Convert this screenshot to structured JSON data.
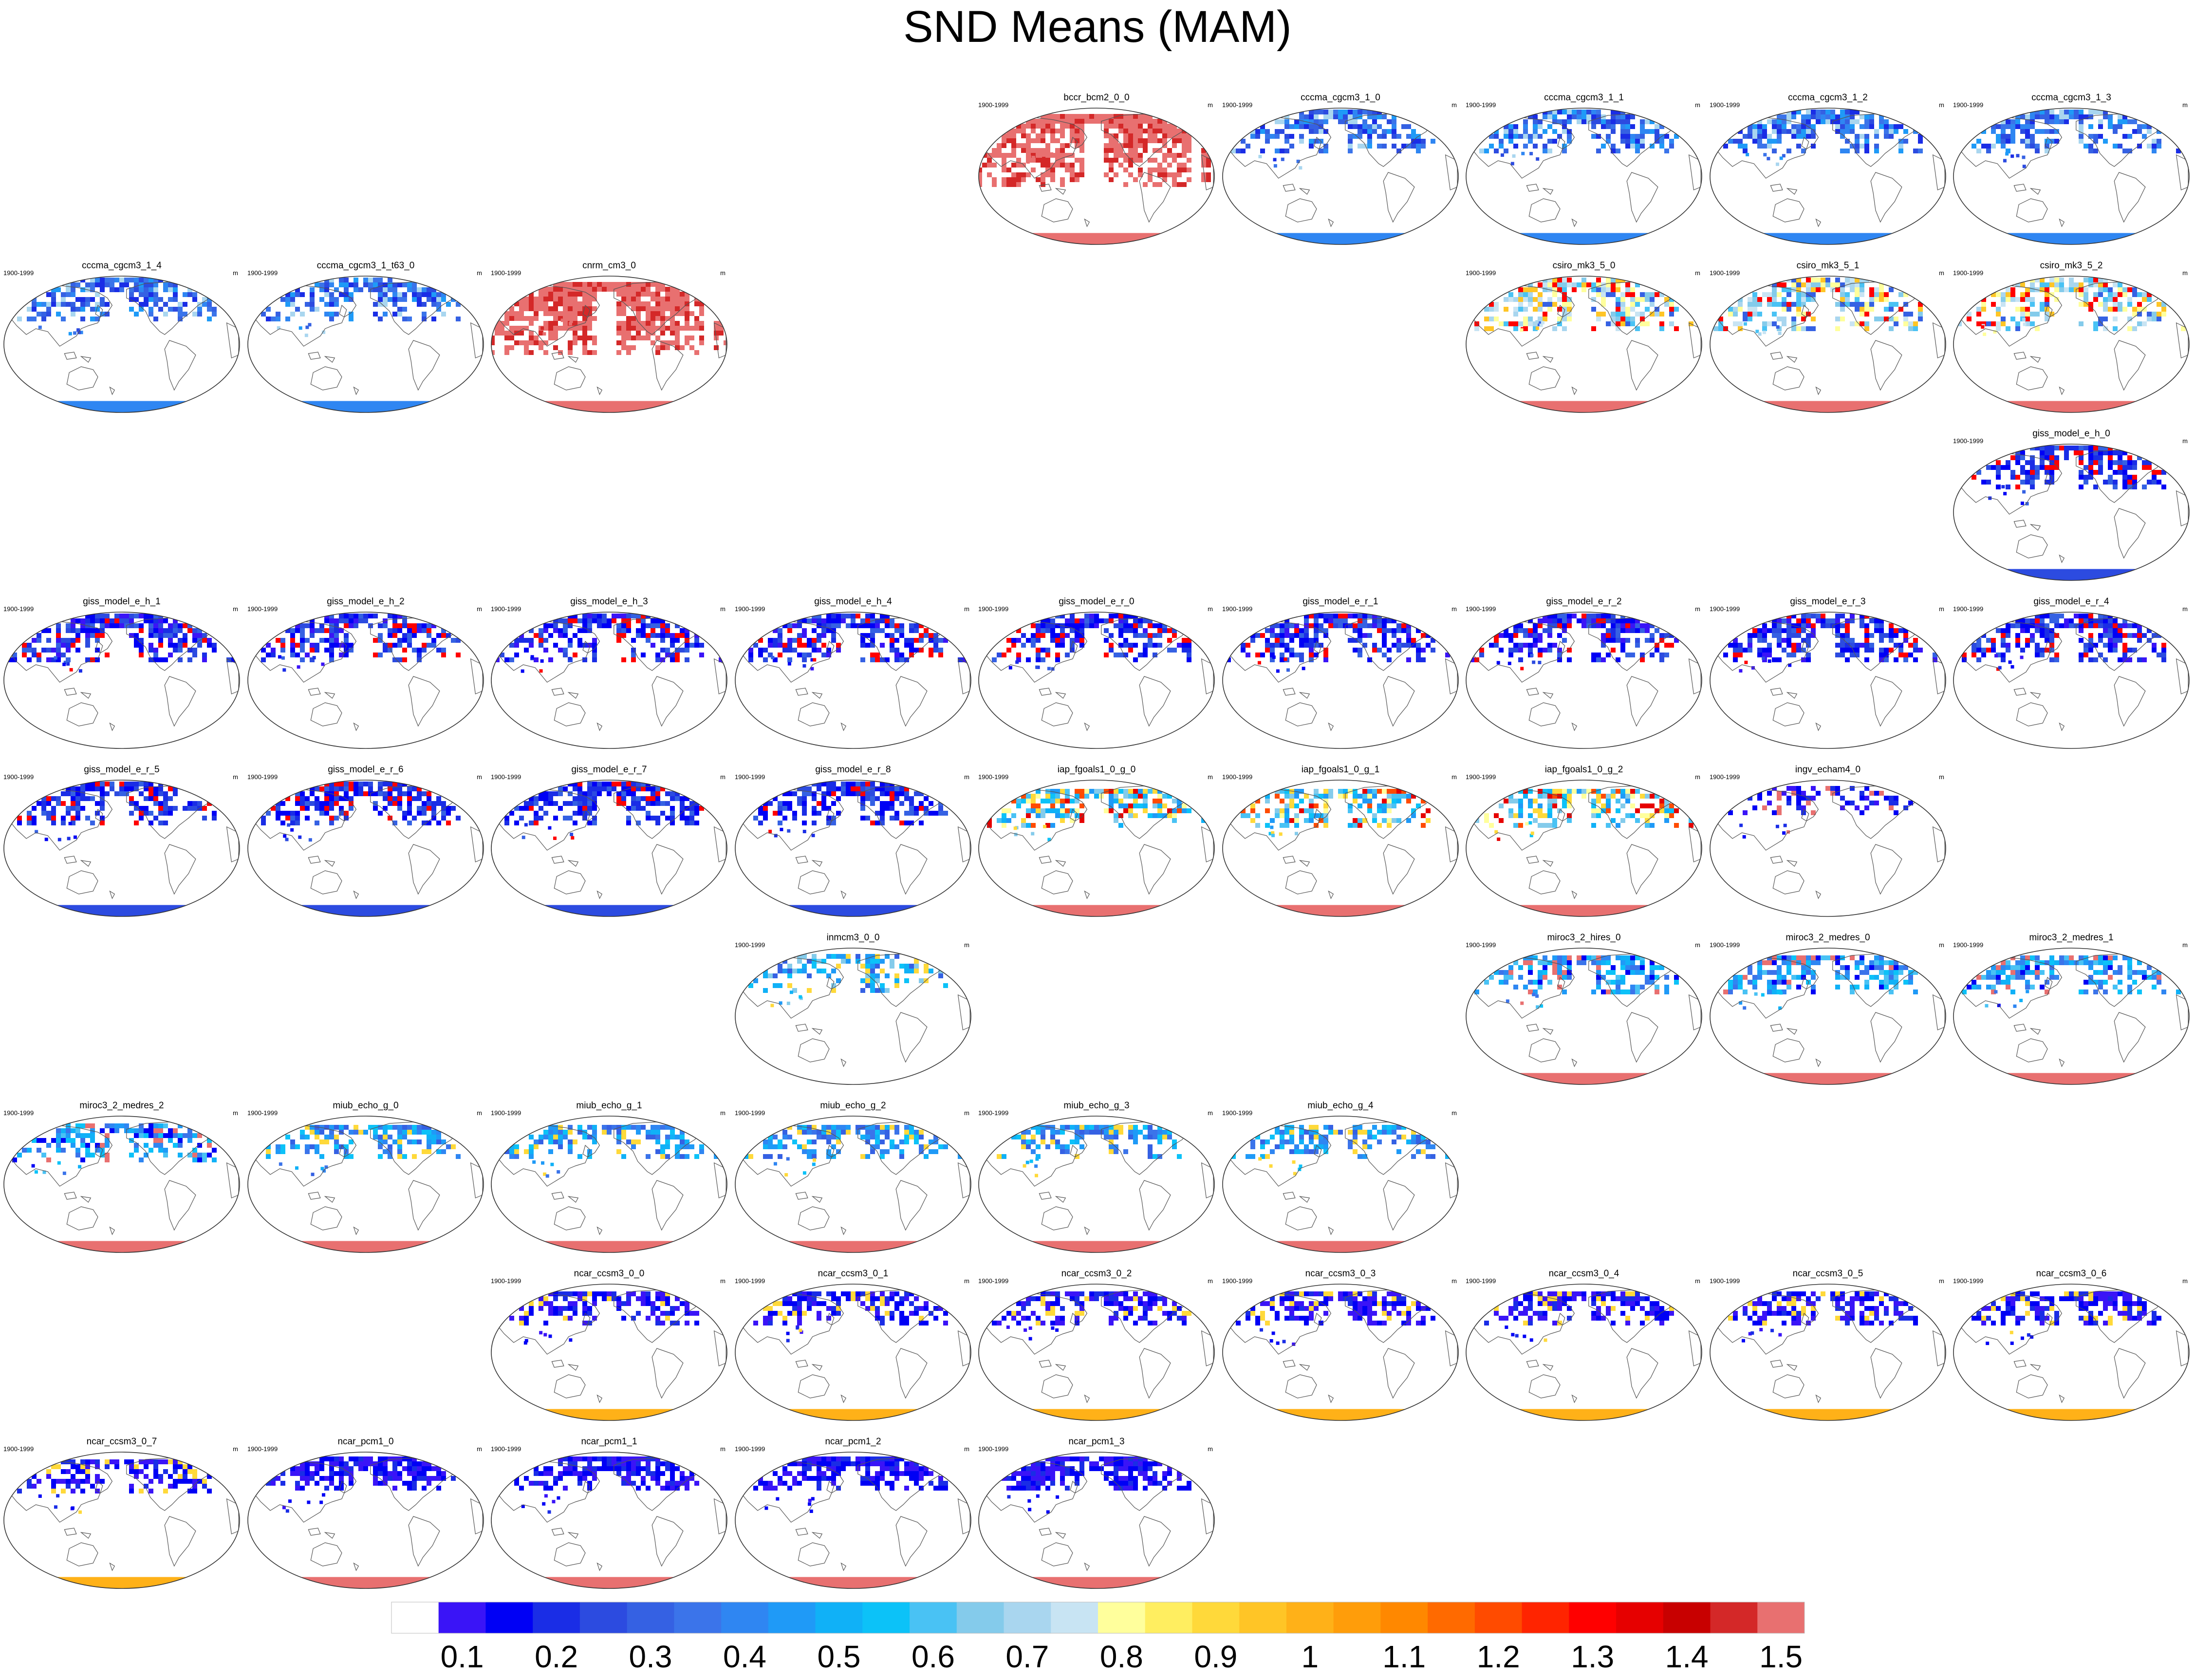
{
  "title": "SND Means (MAM)",
  "chart_data": {
    "type": "heatmap",
    "title": "SND Means (MAM)",
    "variable": "SND",
    "season": "MAM",
    "period": "1900-1999",
    "units": "m",
    "colorbar": {
      "tick_labels": [
        "0.1",
        "0.2",
        "0.3",
        "0.4",
        "0.5",
        "0.6",
        "0.7",
        "0.8",
        "0.9",
        "1",
        "1.1",
        "1.2",
        "1.3",
        "1.4",
        "1.5"
      ],
      "colors": [
        "#ffffff",
        "#3a14f7",
        "#0000f5",
        "#1a2de6",
        "#2c4be0",
        "#3561e3",
        "#3b74ea",
        "#2f86f2",
        "#1f9af7",
        "#10b1f7",
        "#0cc2f8",
        "#49c2f4",
        "#84cbeb",
        "#a9d6ef",
        "#c8e4f3",
        "#ffff9c",
        "#ffee60",
        "#ffd93a",
        "#ffc526",
        "#ffb118",
        "#ff9d0a",
        "#ff8800",
        "#ff6a00",
        "#ff4b00",
        "#ff2400",
        "#ff0000",
        "#e60000",
        "#c80000",
        "#d42828",
        "#e87070"
      ]
    },
    "panels": [
      {
        "name": "bccr_bcm2_0_0",
        "row": 0,
        "col": 4,
        "style": "red"
      },
      {
        "name": "cccma_cgcm3_1_0",
        "row": 0,
        "col": 5,
        "style": "cccma"
      },
      {
        "name": "cccma_cgcm3_1_1",
        "row": 0,
        "col": 6,
        "style": "cccma"
      },
      {
        "name": "cccma_cgcm3_1_2",
        "row": 0,
        "col": 7,
        "style": "cccma"
      },
      {
        "name": "cccma_cgcm3_1_3",
        "row": 0,
        "col": 8,
        "style": "cccma"
      },
      {
        "name": "cccma_cgcm3_1_4",
        "row": 1,
        "col": 0,
        "style": "cccma"
      },
      {
        "name": "cccma_cgcm3_1_t63_0",
        "row": 1,
        "col": 1,
        "style": "cccma"
      },
      {
        "name": "cnrm_cm3_0",
        "row": 1,
        "col": 2,
        "style": "red"
      },
      {
        "name": "csiro_mk3_5_0",
        "row": 1,
        "col": 6,
        "style": "csiro"
      },
      {
        "name": "csiro_mk3_5_1",
        "row": 1,
        "col": 7,
        "style": "csiro"
      },
      {
        "name": "csiro_mk3_5_2",
        "row": 1,
        "col": 8,
        "style": "csiro"
      },
      {
        "name": "giss_model_e_h_0",
        "row": 2,
        "col": 8,
        "style": "giss"
      },
      {
        "name": "giss_model_e_h_1",
        "row": 3,
        "col": 0,
        "style": "giss_na"
      },
      {
        "name": "giss_model_e_h_2",
        "row": 3,
        "col": 1,
        "style": "giss_na"
      },
      {
        "name": "giss_model_e_h_3",
        "row": 3,
        "col": 2,
        "style": "giss_na"
      },
      {
        "name": "giss_model_e_h_4",
        "row": 3,
        "col": 3,
        "style": "giss_na"
      },
      {
        "name": "giss_model_e_r_0",
        "row": 3,
        "col": 4,
        "style": "giss_na"
      },
      {
        "name": "giss_model_e_r_1",
        "row": 3,
        "col": 5,
        "style": "giss_na"
      },
      {
        "name": "giss_model_e_r_2",
        "row": 3,
        "col": 6,
        "style": "giss_na"
      },
      {
        "name": "giss_model_e_r_3",
        "row": 3,
        "col": 7,
        "style": "giss_na"
      },
      {
        "name": "giss_model_e_r_4",
        "row": 3,
        "col": 8,
        "style": "giss_na"
      },
      {
        "name": "giss_model_e_r_5",
        "row": 4,
        "col": 0,
        "style": "giss"
      },
      {
        "name": "giss_model_e_r_6",
        "row": 4,
        "col": 1,
        "style": "giss"
      },
      {
        "name": "giss_model_e_r_7",
        "row": 4,
        "col": 2,
        "style": "giss"
      },
      {
        "name": "giss_model_e_r_8",
        "row": 4,
        "col": 3,
        "style": "giss"
      },
      {
        "name": "iap_fgoals1_0_g_0",
        "row": 4,
        "col": 4,
        "style": "iap"
      },
      {
        "name": "iap_fgoals1_0_g_1",
        "row": 4,
        "col": 5,
        "style": "iap"
      },
      {
        "name": "iap_fgoals1_0_g_2",
        "row": 4,
        "col": 6,
        "style": "iap"
      },
      {
        "name": "ingv_echam4_0",
        "row": 4,
        "col": 7,
        "style": "ingv"
      },
      {
        "name": "inmcm3_0_0",
        "row": 5,
        "col": 3,
        "style": "inm"
      },
      {
        "name": "miroc3_2_hires_0",
        "row": 5,
        "col": 6,
        "style": "miroc"
      },
      {
        "name": "miroc3_2_medres_0",
        "row": 5,
        "col": 7,
        "style": "miroc"
      },
      {
        "name": "miroc3_2_medres_1",
        "row": 5,
        "col": 8,
        "style": "miroc"
      },
      {
        "name": "miroc3_2_medres_2",
        "row": 6,
        "col": 0,
        "style": "miroc"
      },
      {
        "name": "miub_echo_g_0",
        "row": 6,
        "col": 1,
        "style": "miub"
      },
      {
        "name": "miub_echo_g_1",
        "row": 6,
        "col": 2,
        "style": "miub"
      },
      {
        "name": "miub_echo_g_2",
        "row": 6,
        "col": 3,
        "style": "miub"
      },
      {
        "name": "miub_echo_g_3",
        "row": 6,
        "col": 4,
        "style": "miub"
      },
      {
        "name": "miub_echo_g_4",
        "row": 6,
        "col": 5,
        "style": "miub"
      },
      {
        "name": "ncar_ccsm3_0_0",
        "row": 7,
        "col": 2,
        "style": "ncar"
      },
      {
        "name": "ncar_ccsm3_0_1",
        "row": 7,
        "col": 3,
        "style": "ncar"
      },
      {
        "name": "ncar_ccsm3_0_2",
        "row": 7,
        "col": 4,
        "style": "ncar"
      },
      {
        "name": "ncar_ccsm3_0_3",
        "row": 7,
        "col": 5,
        "style": "ncar"
      },
      {
        "name": "ncar_ccsm3_0_4",
        "row": 7,
        "col": 6,
        "style": "ncar"
      },
      {
        "name": "ncar_ccsm3_0_5",
        "row": 7,
        "col": 7,
        "style": "ncar"
      },
      {
        "name": "ncar_ccsm3_0_6",
        "row": 7,
        "col": 8,
        "style": "ncar"
      },
      {
        "name": "ncar_ccsm3_0_7",
        "row": 8,
        "col": 0,
        "style": "ncar"
      },
      {
        "name": "ncar_pcm1_0",
        "row": 8,
        "col": 1,
        "style": "pcm"
      },
      {
        "name": "ncar_pcm1_1",
        "row": 8,
        "col": 2,
        "style": "pcm"
      },
      {
        "name": "ncar_pcm1_2",
        "row": 8,
        "col": 3,
        "style": "pcm"
      },
      {
        "name": "ncar_pcm1_3",
        "row": 8,
        "col": 4,
        "style": "pcm"
      }
    ]
  }
}
